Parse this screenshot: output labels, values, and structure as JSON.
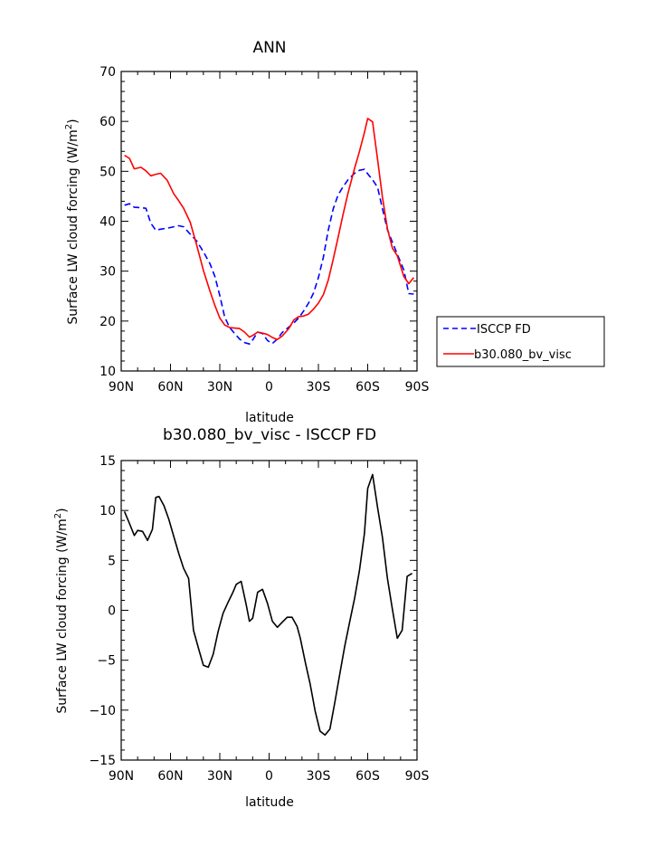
{
  "chart_data": [
    {
      "type": "line",
      "title": "ANN",
      "xlabel": "latitude",
      "ylabel_prefix": "Surface LW cloud forcing (W/m",
      "ylabel_sup": "2",
      "ylabel_suffix": ")",
      "xlim": [
        90,
        -90
      ],
      "ylim": [
        10,
        70
      ],
      "xticks": [
        90,
        60,
        30,
        0,
        -30,
        -60,
        -90
      ],
      "xtick_labels": [
        "90N",
        "60N",
        "30N",
        "0",
        "30S",
        "60S",
        "90S"
      ],
      "yticks": [
        10,
        20,
        30,
        40,
        50,
        60,
        70
      ],
      "ytick_labels": [
        "10",
        "20",
        "30",
        "40",
        "50",
        "60",
        "70"
      ],
      "legend_position": "right",
      "series": [
        {
          "name": "ISCCP FD",
          "color": "#0000ff",
          "style": "dashed",
          "x": [
            88,
            85,
            82,
            78,
            75,
            72,
            69,
            66,
            62,
            58,
            55,
            52,
            48,
            44,
            40,
            36,
            33,
            30,
            27,
            24,
            21,
            18,
            15,
            12,
            10,
            7,
            4,
            1,
            -2,
            -5,
            -8,
            -12,
            -15,
            -18,
            -21,
            -24,
            -27,
            -30,
            -33,
            -36,
            -39,
            -42,
            -45,
            -48,
            -52,
            -55,
            -58,
            -60,
            -63,
            -66,
            -69,
            -72,
            -75,
            -78,
            -82,
            -85,
            -88
          ],
          "y": [
            43.2,
            43.5,
            42.8,
            42.7,
            42.6,
            39.6,
            38.2,
            38.4,
            38.6,
            38.9,
            39.1,
            38.9,
            37.4,
            36.0,
            33.9,
            31.5,
            28.9,
            25.1,
            20.8,
            18.7,
            17.5,
            16.4,
            15.7,
            15.4,
            16.2,
            17.8,
            17.5,
            16.1,
            15.5,
            16.4,
            17.7,
            18.8,
            19.6,
            20.6,
            22.0,
            23.6,
            25.6,
            28.7,
            32.8,
            38.2,
            42.5,
            45.3,
            46.9,
            48.3,
            49.6,
            50.2,
            50.4,
            49.5,
            48.3,
            46.8,
            42.5,
            38.3,
            35.8,
            33.4,
            30.2,
            25.5,
            25.4
          ]
        },
        {
          "name": "b30.080_bv_visc",
          "color": "#ff0000",
          "style": "solid",
          "x": [
            88,
            85,
            82,
            78,
            75,
            72,
            69,
            66,
            62,
            58,
            55,
            52,
            48,
            44,
            40,
            36,
            33,
            30,
            27,
            24,
            21,
            18,
            15,
            12,
            10,
            7,
            4,
            1,
            -2,
            -5,
            -8,
            -12,
            -15,
            -18,
            -21,
            -24,
            -27,
            -30,
            -33,
            -36,
            -39,
            -42,
            -45,
            -48,
            -52,
            -55,
            -58,
            -60,
            -63,
            -66,
            -69,
            -72,
            -75,
            -78,
            -82,
            -85,
            -88
          ],
          "y": [
            53.2,
            52.6,
            50.5,
            50.8,
            50.1,
            49.1,
            49.4,
            49.6,
            48.2,
            45.5,
            44.1,
            42.6,
            39.8,
            35.1,
            30.2,
            26.0,
            23.1,
            20.6,
            19.2,
            18.7,
            18.6,
            18.5,
            17.8,
            16.8,
            17.1,
            17.8,
            17.6,
            17.3,
            16.7,
            16.3,
            17.0,
            18.5,
            20.2,
            20.9,
            21.0,
            21.4,
            22.4,
            23.6,
            25.3,
            28.2,
            32.4,
            36.8,
            41.4,
            45.6,
            50.6,
            54.0,
            57.8,
            60.6,
            59.9,
            52.4,
            44.8,
            38.5,
            34.6,
            33.1,
            28.9,
            27.5,
            28.7
          ]
        }
      ]
    },
    {
      "type": "line",
      "title": "b30.080_bv_visc - ISCCP FD",
      "xlabel": "latitude",
      "ylabel_prefix": "Surface LW cloud forcing (W/m",
      "ylabel_sup": "2",
      "ylabel_suffix": ")",
      "xlim": [
        90,
        -90
      ],
      "ylim": [
        -15,
        15
      ],
      "xticks": [
        90,
        60,
        30,
        0,
        -30,
        -60,
        -90
      ],
      "xtick_labels": [
        "90N",
        "60N",
        "30N",
        "0",
        "30S",
        "60S",
        "90S"
      ],
      "yticks": [
        -15,
        -10,
        -5,
        0,
        5,
        10,
        15
      ],
      "ytick_labels": [
        "−15",
        "−10",
        "−5",
        "0",
        "5",
        "10",
        "15"
      ],
      "series": [
        {
          "name": "",
          "color": "#000000",
          "style": "solid",
          "x": [
            88,
            85,
            82,
            80,
            77,
            74,
            71,
            69,
            67,
            64,
            61,
            58,
            55,
            52,
            49,
            46,
            43,
            40,
            37,
            34,
            31,
            28,
            25,
            22,
            20,
            17,
            14,
            12,
            10,
            7,
            4,
            1,
            -2,
            -5,
            -8,
            -11,
            -14,
            -17,
            -19,
            -22,
            -25,
            -28,
            -31,
            -34,
            -37,
            -40,
            -43,
            -46,
            -49,
            -52,
            -55,
            -58,
            -60,
            -63,
            -66,
            -69,
            -72,
            -75,
            -78,
            -81,
            -84,
            -87
          ],
          "y": [
            9.9,
            8.7,
            7.5,
            8.0,
            7.9,
            7.0,
            8.1,
            11.3,
            11.4,
            10.5,
            9.1,
            7.4,
            5.7,
            4.2,
            3.2,
            -2.0,
            -3.8,
            -5.5,
            -5.7,
            -4.4,
            -2.1,
            -0.3,
            0.8,
            1.8,
            2.6,
            2.9,
            0.6,
            -1.1,
            -0.8,
            1.8,
            2.1,
            0.7,
            -1.1,
            -1.7,
            -1.2,
            -0.7,
            -0.7,
            -1.6,
            -2.8,
            -5.2,
            -7.4,
            -10.1,
            -12.1,
            -12.5,
            -11.9,
            -9.2,
            -6.4,
            -3.6,
            -1.2,
            1.2,
            4.0,
            7.7,
            12.2,
            13.6,
            10.3,
            7.3,
            3.2,
            0.1,
            -2.8,
            -2.0,
            3.4,
            3.7
          ]
        }
      ]
    }
  ]
}
